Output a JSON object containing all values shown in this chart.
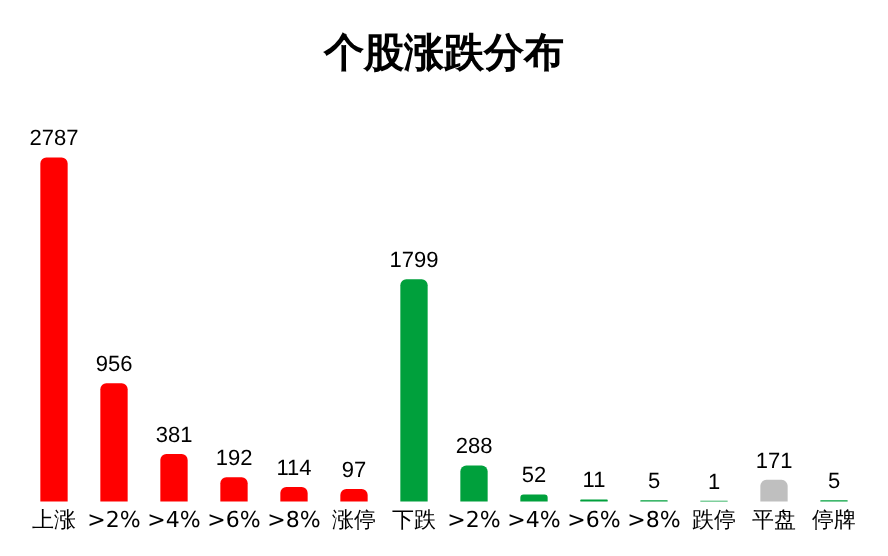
{
  "chart_data": {
    "type": "bar",
    "title": "个股涨跌分布",
    "categories": [
      "上涨",
      ">2%",
      ">4%",
      ">6%",
      ">8%",
      "涨停",
      "下跌",
      ">2%",
      ">4%",
      ">6%",
      ">8%",
      "跌停",
      "平盘",
      "停牌"
    ],
    "values": [
      2787,
      956,
      381,
      192,
      114,
      97,
      1799,
      288,
      52,
      11,
      5,
      1,
      171,
      5
    ],
    "colors": [
      "#ff0000",
      "#ff0000",
      "#ff0000",
      "#ff0000",
      "#ff0000",
      "#ff0000",
      "#00a03c",
      "#00a03c",
      "#00a03c",
      "#00a03c",
      "#00a03c",
      "#00a03c",
      "#bfbfbf",
      "#00a03c"
    ],
    "data_labels": true,
    "grid": false,
    "legend": false
  }
}
